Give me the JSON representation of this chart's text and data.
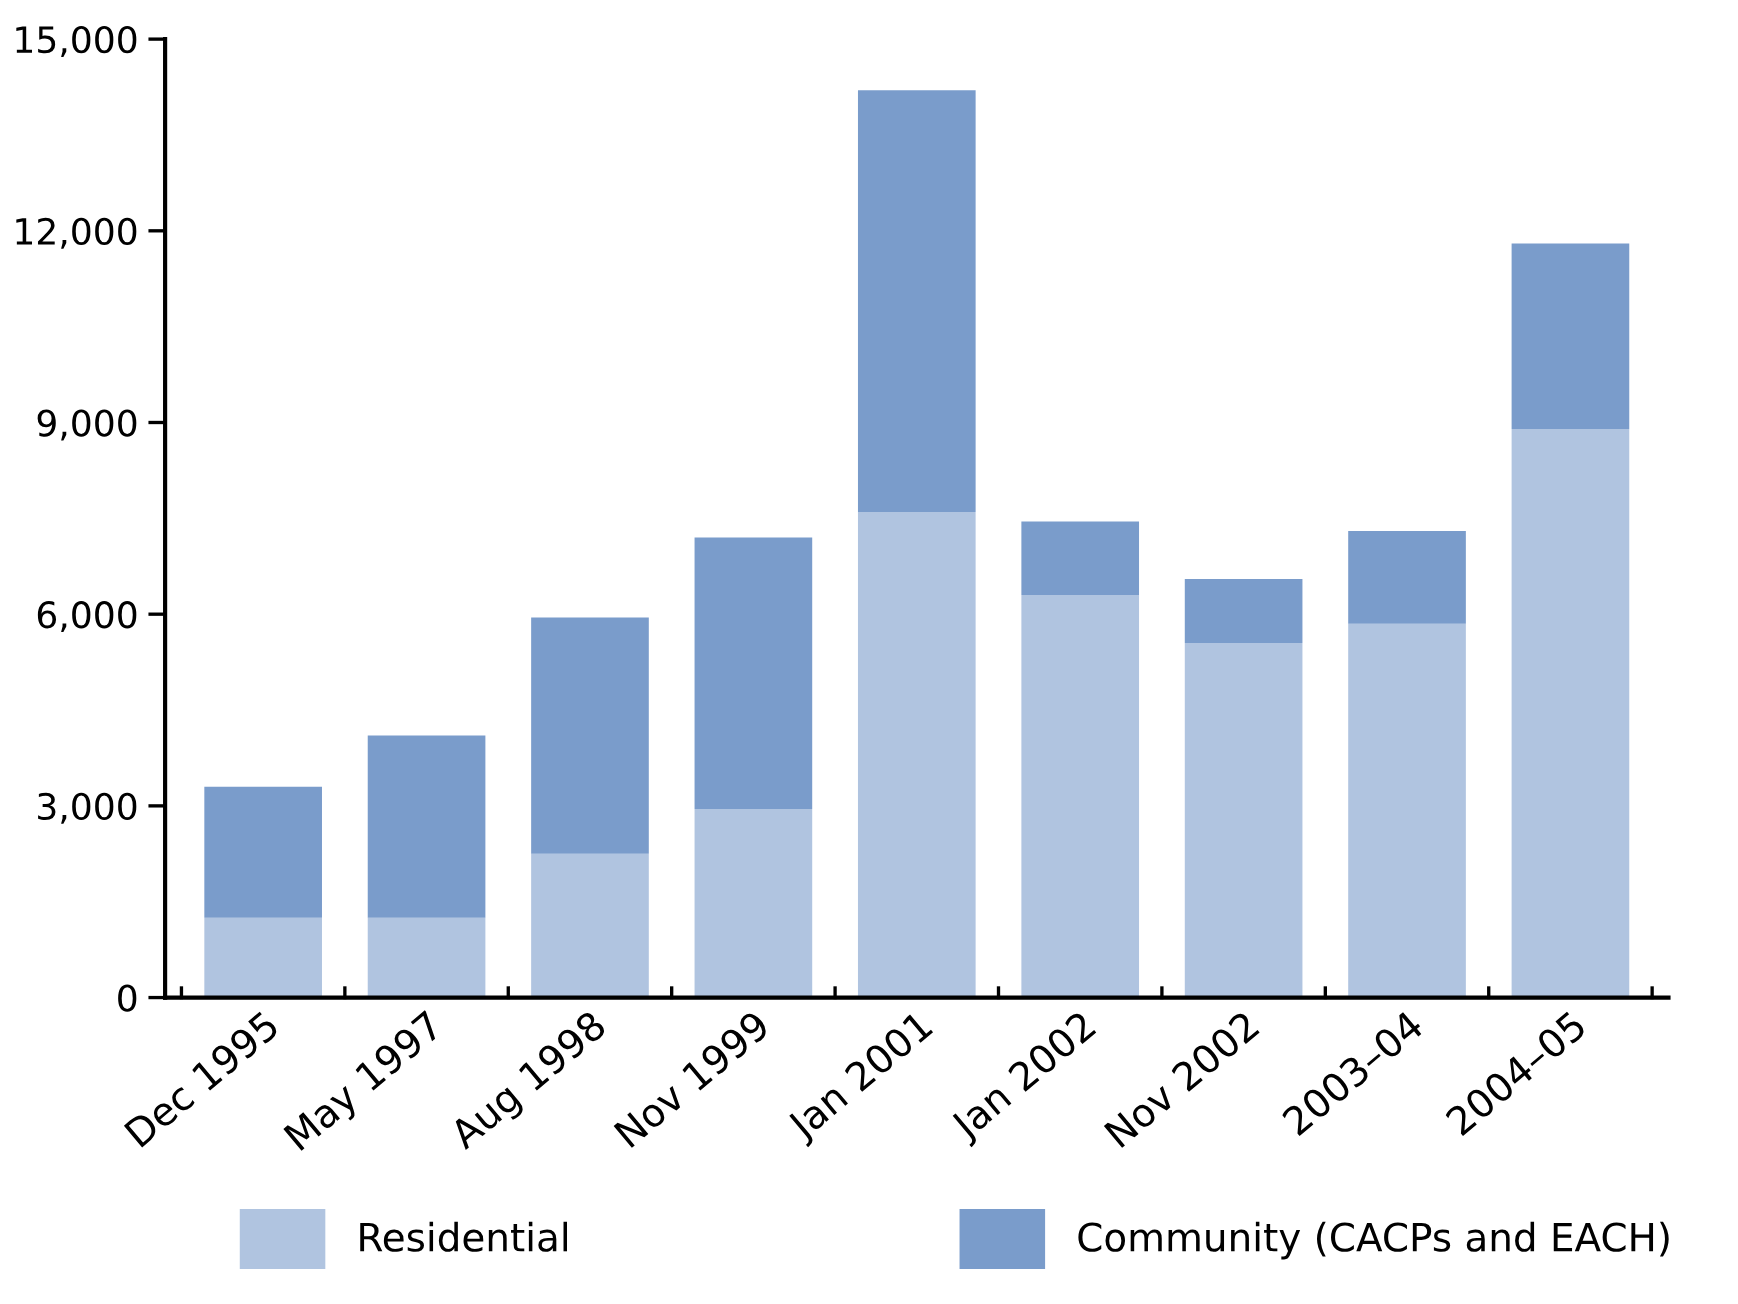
{
  "chart_data": {
    "type": "bar",
    "stacked": true,
    "categories": [
      "Dec 1995",
      "May 1997",
      "Aug 1998",
      "Nov 1999",
      "Jan 2001",
      "Jan 2002",
      "Nov 2002",
      "2003–04",
      "2004–05"
    ],
    "series": [
      {
        "name": "Residential",
        "color": "#b0c4e0",
        "values": [
          1250,
          1250,
          2250,
          2950,
          7600,
          6300,
          5550,
          5850,
          8900
        ]
      },
      {
        "name": "Community (CACPs and EACH)",
        "color": "#7a9ccb",
        "values": [
          2050,
          2850,
          3700,
          4250,
          6600,
          1150,
          1000,
          1450,
          2900
        ]
      }
    ],
    "ylim": [
      0,
      15000
    ],
    "yticks": [
      {
        "value": 0,
        "label": "0"
      },
      {
        "value": 3000,
        "label": "3,000"
      },
      {
        "value": 6000,
        "label": "6,000"
      },
      {
        "value": 9000,
        "label": "9,000"
      },
      {
        "value": 12000,
        "label": "12,000"
      },
      {
        "value": 15000,
        "label": "15,000"
      }
    ],
    "grid": false,
    "legend": "bottom"
  }
}
